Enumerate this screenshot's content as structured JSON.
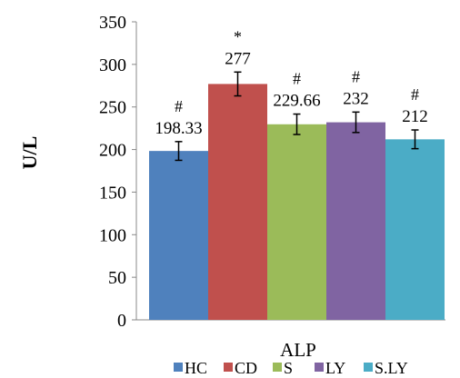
{
  "chart_data": {
    "type": "bar",
    "title": "",
    "xlabel": "ALP",
    "ylabel": "U/L",
    "ylim": [
      0,
      350
    ],
    "yticks": [
      0,
      50,
      100,
      150,
      200,
      250,
      300,
      350
    ],
    "grid": false,
    "legend_position": "bottom",
    "categories": [
      "HC",
      "CD",
      "S",
      "LY",
      "S.LY"
    ],
    "values": [
      198.33,
      277,
      229.66,
      232,
      212
    ],
    "error": [
      11,
      14,
      12,
      12,
      11
    ],
    "value_labels": [
      "198.33",
      "277",
      "229.66",
      "232",
      "212"
    ],
    "significance_marks": [
      "#",
      "*",
      "#",
      "#",
      "#"
    ],
    "colors": [
      "#4F81BD",
      "#C0504D",
      "#9BBB59",
      "#8064A2",
      "#4BACC6"
    ]
  }
}
